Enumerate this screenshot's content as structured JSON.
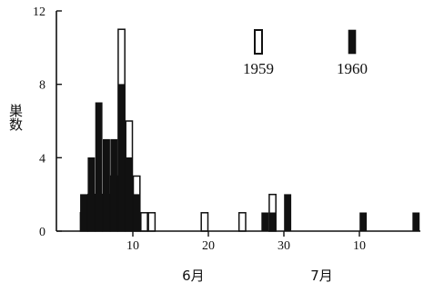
{
  "chart_data": {
    "type": "bar",
    "ylabel": "巣数",
    "ylim": [
      0,
      12
    ],
    "y_ticks": [
      0,
      4,
      8,
      12
    ],
    "x_axis": {
      "ticks": [
        {
          "pos": 0,
          "label": "10"
        },
        {
          "pos": 10,
          "label": "20"
        },
        {
          "pos": 20,
          "label": "30"
        },
        {
          "pos": 30,
          "label": "10"
        }
      ],
      "month_labels": [
        {
          "pos": 8,
          "label": "6月"
        },
        {
          "pos": 25,
          "label": "7月"
        }
      ]
    },
    "series": [
      {
        "name": "1959",
        "style": "outline",
        "bars": [
          {
            "start": -7,
            "value": 1
          },
          {
            "start": -6,
            "value": 2
          },
          {
            "start": -5,
            "value": 2
          },
          {
            "start": -4,
            "value": 2
          },
          {
            "start": -3,
            "value": 3
          },
          {
            "start": -2,
            "value": 11
          },
          {
            "start": -1,
            "value": 6
          },
          {
            "start": 0,
            "value": 3
          },
          {
            "start": 1,
            "value": 1
          },
          {
            "start": 2,
            "value": 1
          },
          {
            "start": 9,
            "value": 1
          },
          {
            "start": 14,
            "value": 1
          },
          {
            "start": 18,
            "value": 2
          }
        ]
      },
      {
        "name": "1960",
        "style": "filled",
        "bars": [
          {
            "start": -7,
            "value": 2
          },
          {
            "start": -6,
            "value": 4
          },
          {
            "start": -5,
            "value": 7
          },
          {
            "start": -4,
            "value": 5
          },
          {
            "start": -3,
            "value": 5
          },
          {
            "start": -2,
            "value": 8
          },
          {
            "start": -1,
            "value": 4
          },
          {
            "start": 0,
            "value": 2
          },
          {
            "start": 17,
            "value": 1
          },
          {
            "start": 18,
            "value": 1
          },
          {
            "start": 20,
            "value": 2
          },
          {
            "start": 30,
            "value": 1
          },
          {
            "start": 37,
            "value": 1
          }
        ]
      }
    ],
    "colors": {
      "filled": "#111111",
      "outline": "#111111",
      "background": "#ffffff"
    }
  }
}
